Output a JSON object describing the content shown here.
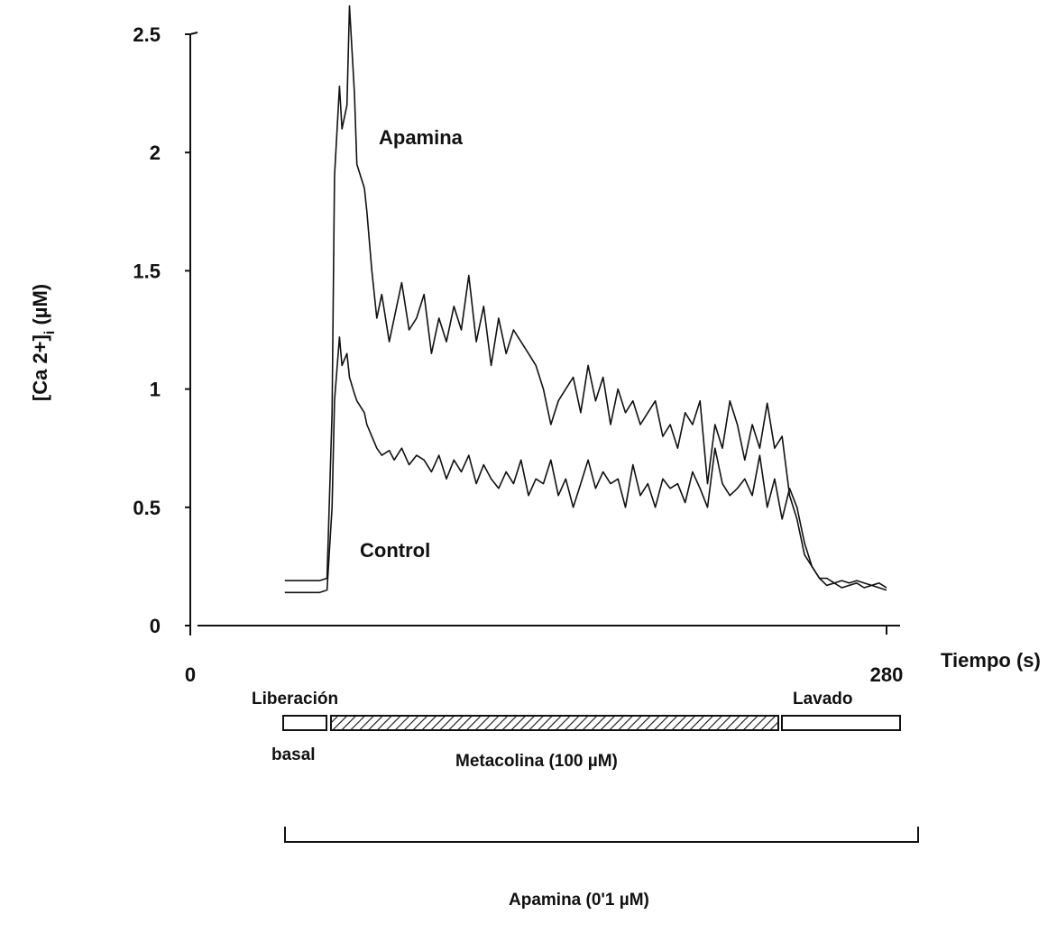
{
  "chart_data": {
    "type": "line",
    "title": "",
    "xlabel": "Tiempo (s)",
    "ylabel_main": "[Ca 2+]",
    "ylabel_sub": "i",
    "ylabel_unit": "(µM)",
    "xlim": [
      0,
      280
    ],
    "ylim": [
      0,
      2.5
    ],
    "x_ticks": [
      0,
      280
    ],
    "y_ticks": [
      "0",
      "0.5",
      "1",
      "1.5",
      "2",
      "2.5"
    ],
    "grid": false,
    "series": [
      {
        "name": "Apamina",
        "x": [
          38,
          52,
          55,
          57,
          58,
          60,
          61,
          63,
          64,
          66,
          67,
          70,
          71,
          73,
          75,
          77,
          80,
          82,
          85,
          88,
          91,
          94,
          97,
          100,
          103,
          106,
          109,
          112,
          115,
          118,
          121,
          124,
          127,
          130,
          133,
          136,
          139,
          142,
          145,
          148,
          151,
          154,
          157,
          160,
          163,
          166,
          169,
          172,
          175,
          178,
          181,
          184,
          187,
          190,
          193,
          196,
          199,
          202,
          205,
          208,
          211,
          214,
          217,
          220,
          223,
          226,
          229,
          232,
          235,
          238,
          241,
          244,
          247,
          250,
          253,
          256,
          259,
          262,
          265,
          268,
          271,
          274,
          277,
          280
        ],
        "y": [
          0.19,
          0.19,
          0.2,
          0.9,
          1.9,
          2.28,
          2.1,
          2.2,
          2.62,
          2.25,
          1.95,
          1.85,
          1.75,
          1.5,
          1.3,
          1.4,
          1.2,
          1.3,
          1.45,
          1.25,
          1.3,
          1.4,
          1.15,
          1.3,
          1.2,
          1.35,
          1.25,
          1.48,
          1.2,
          1.35,
          1.1,
          1.3,
          1.15,
          1.25,
          1.2,
          1.15,
          1.1,
          1.0,
          0.85,
          0.95,
          1.0,
          1.05,
          0.9,
          1.1,
          0.95,
          1.05,
          0.85,
          1.0,
          0.9,
          0.95,
          0.85,
          0.9,
          0.95,
          0.8,
          0.85,
          0.75,
          0.9,
          0.85,
          0.95,
          0.6,
          0.85,
          0.75,
          0.95,
          0.85,
          0.7,
          0.85,
          0.75,
          0.94,
          0.75,
          0.8,
          0.55,
          0.45,
          0.3,
          0.25,
          0.2,
          0.2,
          0.18,
          0.19,
          0.18,
          0.19,
          0.18,
          0.17,
          0.18,
          0.16
        ]
      },
      {
        "name": "Control",
        "x": [
          38,
          52,
          55,
          57,
          58,
          60,
          61,
          63,
          64,
          66,
          67,
          70,
          71,
          73,
          75,
          77,
          80,
          82,
          85,
          88,
          91,
          94,
          97,
          100,
          103,
          106,
          109,
          112,
          115,
          118,
          121,
          124,
          127,
          130,
          133,
          136,
          139,
          142,
          145,
          148,
          151,
          154,
          157,
          160,
          163,
          166,
          169,
          172,
          175,
          178,
          181,
          184,
          187,
          190,
          193,
          196,
          199,
          202,
          205,
          208,
          211,
          214,
          217,
          220,
          223,
          226,
          229,
          232,
          235,
          238,
          241,
          244,
          247,
          250,
          253,
          256,
          259,
          262,
          265,
          268,
          271,
          274,
          277,
          280
        ],
        "y": [
          0.14,
          0.14,
          0.15,
          0.5,
          0.95,
          1.22,
          1.1,
          1.15,
          1.05,
          0.98,
          0.95,
          0.9,
          0.85,
          0.8,
          0.75,
          0.72,
          0.74,
          0.7,
          0.75,
          0.68,
          0.72,
          0.7,
          0.65,
          0.72,
          0.62,
          0.7,
          0.65,
          0.72,
          0.6,
          0.68,
          0.62,
          0.58,
          0.65,
          0.6,
          0.7,
          0.55,
          0.62,
          0.6,
          0.7,
          0.55,
          0.62,
          0.5,
          0.6,
          0.7,
          0.58,
          0.65,
          0.6,
          0.62,
          0.5,
          0.68,
          0.55,
          0.6,
          0.5,
          0.62,
          0.58,
          0.6,
          0.52,
          0.65,
          0.58,
          0.5,
          0.75,
          0.6,
          0.55,
          0.58,
          0.62,
          0.55,
          0.72,
          0.5,
          0.62,
          0.45,
          0.58,
          0.5,
          0.35,
          0.25,
          0.2,
          0.17,
          0.18,
          0.16,
          0.17,
          0.18,
          0.16,
          0.17,
          0.16,
          0.15
        ]
      }
    ],
    "annotations": {
      "apamina_label": "Apamina",
      "control_label": "Control"
    }
  },
  "protocol": {
    "liberacion_label": "Liberación",
    "basal_label": "basal",
    "lavado_label": "Lavado",
    "metacolina_label": "Metacolina (100 µM)",
    "apamina_bracket_label": "Apamina (0'1 µM)"
  }
}
